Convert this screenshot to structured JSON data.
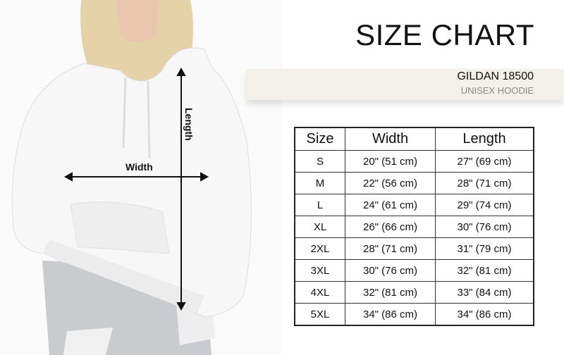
{
  "header": {
    "title": "SIZE CHART",
    "brand": "GILDAN 18500",
    "product": "UNISEX HOODIE"
  },
  "diagram": {
    "width_label": "Width",
    "length_label": "Length"
  },
  "table": {
    "columns": [
      "Size",
      "Width",
      "Length"
    ],
    "rows": [
      [
        "S",
        "20\" (51 cm)",
        "27\" (69 cm)"
      ],
      [
        "M",
        "22\" (56 cm)",
        "28\" (71 cm)"
      ],
      [
        "L",
        "24\" (61 cm)",
        "29\" (74 cm)"
      ],
      [
        "XL",
        "26\" (66 cm)",
        "30\" (76 cm)"
      ],
      [
        "2XL",
        "28\" (71 cm)",
        "31\"  (79 cm)"
      ],
      [
        "3XL",
        "30\" (76 cm)",
        "32\" (81 cm)"
      ],
      [
        "4XL",
        "32\" (81 cm)",
        "33\" (84 cm)"
      ],
      [
        "5XL",
        "34\" (86 cm)",
        "34\" (86 cm)"
      ]
    ]
  }
}
